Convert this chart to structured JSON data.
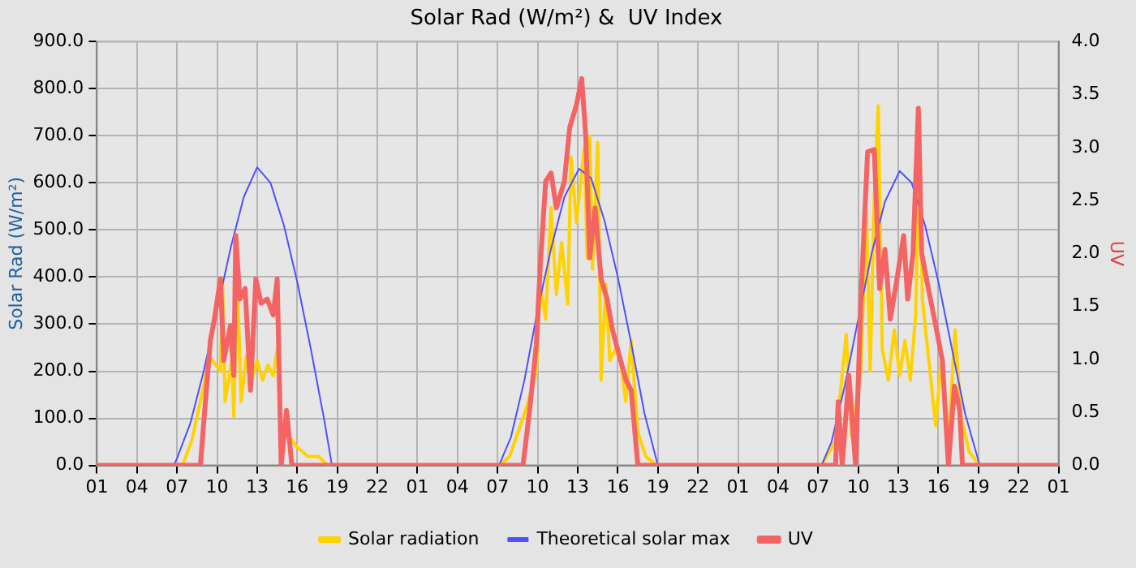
{
  "chart_data": {
    "type": "line",
    "title": "Solar Rad (W/m²) &  UV Index",
    "ylabel": "Solar Rad (W/m²)",
    "y2label": "UV",
    "xlim": [
      "--01-01T01:00",
      "--01-04T01:00"
    ],
    "xticks": [
      {
        "value": "--01-01T01:00",
        "label": "01"
      },
      {
        "value": "--01-01T04:00",
        "label": "04"
      },
      {
        "value": "--01-01T07:00",
        "label": "07"
      },
      {
        "value": "--01-01T10:00",
        "label": "10"
      },
      {
        "value": "--01-01T13:00",
        "label": "13"
      },
      {
        "value": "--01-01T16:00",
        "label": "16"
      },
      {
        "value": "--01-01T19:00",
        "label": "19"
      },
      {
        "value": "--01-01T22:00",
        "label": "22"
      },
      {
        "value": "--01-02T01:00",
        "label": "01"
      },
      {
        "value": "--01-02T04:00",
        "label": "04"
      },
      {
        "value": "--01-02T07:00",
        "label": "07"
      },
      {
        "value": "--01-02T10:00",
        "label": "10"
      },
      {
        "value": "--01-02T13:00",
        "label": "13"
      },
      {
        "value": "--01-02T16:00",
        "label": "16"
      },
      {
        "value": "--01-02T19:00",
        "label": "19"
      },
      {
        "value": "--01-02T22:00",
        "label": "22"
      },
      {
        "value": "--01-03T01:00",
        "label": "01"
      },
      {
        "value": "--01-03T04:00",
        "label": "04"
      },
      {
        "value": "--01-03T07:00",
        "label": "07"
      },
      {
        "value": "--01-03T10:00",
        "label": "10"
      },
      {
        "value": "--01-03T13:00",
        "label": "13"
      },
      {
        "value": "--01-03T16:00",
        "label": "16"
      },
      {
        "value": "--01-03T19:00",
        "label": "19"
      },
      {
        "value": "--01-03T22:00",
        "label": "22"
      },
      {
        "value": "--01-04T01:00",
        "label": "01"
      }
    ],
    "ylim": [
      0,
      900
    ],
    "yticks": [
      {
        "value": 0,
        "label": "0.0"
      },
      {
        "value": 100,
        "label": "100.0"
      },
      {
        "value": 200,
        "label": "200.0"
      },
      {
        "value": 300,
        "label": "300.0"
      },
      {
        "value": 400,
        "label": "400.0"
      },
      {
        "value": 500,
        "label": "500.0"
      },
      {
        "value": 600,
        "label": "600.0"
      },
      {
        "value": 700,
        "label": "700.0"
      },
      {
        "value": 800,
        "label": "800.0"
      },
      {
        "value": 900,
        "label": "900.0"
      }
    ],
    "y2lim": [
      0,
      4
    ],
    "y2ticks": [
      {
        "value": 0,
        "label": "0.0"
      },
      {
        "value": 0.5,
        "label": "0.5"
      },
      {
        "value": 1,
        "label": "1.0"
      },
      {
        "value": 1.5,
        "label": "1.5"
      },
      {
        "value": 2,
        "label": "2.0"
      },
      {
        "value": 2.5,
        "label": "2.5"
      },
      {
        "value": 3,
        "label": "3.0"
      },
      {
        "value": 3.5,
        "label": "3.5"
      },
      {
        "value": 4,
        "label": "4.0"
      }
    ],
    "grid": true,
    "legend": "bottom",
    "series": [
      {
        "name": "Solar radiation",
        "color": "#ffd200",
        "x": [
          "--01-01T01:00",
          "--01-01T07:24",
          "--01-01T08:06",
          "--01-01T09:00",
          "--01-01T09:24",
          "--01-01T10:15",
          "--01-01T10:24",
          "--01-01T10:36",
          "--01-01T11:06",
          "--01-01T11:15",
          "--01-01T11:30",
          "--01-01T11:48",
          "--01-01T12:12",
          "--01-01T12:36",
          "--01-01T13:00",
          "--01-01T13:24",
          "--01-01T13:48",
          "--01-01T14:12",
          "--01-01T14:30",
          "--01-01T14:48",
          "--01-01T15:24",
          "--01-01T16:00",
          "--01-01T16:48",
          "--01-01T17:36",
          "--01-01T18:18",
          "--01-02T07:06",
          "--01-02T07:54",
          "--01-02T09:12",
          "--01-02T09:54",
          "--01-02T10:12",
          "--01-02T10:36",
          "--01-02T11:00",
          "--01-02T11:24",
          "--01-02T11:48",
          "--01-02T12:15",
          "--01-02T12:30",
          "--01-02T12:54",
          "--01-02T13:30",
          "--01-02T13:42",
          "--01-02T13:54",
          "--01-02T14:06",
          "--01-02T14:30",
          "--01-02T14:45",
          "--01-02T15:06",
          "--01-02T15:24",
          "--01-02T15:48",
          "--01-02T16:12",
          "--01-02T16:36",
          "--01-02T17:00",
          "--01-02T17:30",
          "--01-02T18:06",
          "--01-02T18:54",
          "--01-03T07:15",
          "--01-03T08:18",
          "--01-03T09:06",
          "--01-03T09:30",
          "--01-03T10:12",
          "--01-03T10:36",
          "--01-03T10:54",
          "--01-03T11:12",
          "--01-03T11:30",
          "--01-03T11:48",
          "--01-03T12:15",
          "--01-03T12:42",
          "--01-03T13:06",
          "--01-03T13:30",
          "--01-03T13:54",
          "--01-03T14:18",
          "--01-03T14:36",
          "--01-03T14:48",
          "--01-03T15:12",
          "--01-03T15:48",
          "--01-03T16:12",
          "--01-03T16:45",
          "--01-03T17:15",
          "--01-03T17:42",
          "--01-03T18:18",
          "--01-03T19:06",
          "--01-04T01:00"
        ],
        "values": [
          0,
          0,
          52,
          168,
          233,
          200,
          395,
          136,
          223,
          104,
          408,
          136,
          233,
          181,
          223,
          181,
          213,
          191,
          246,
          71,
          61,
          39,
          19,
          19,
          0,
          0,
          19,
          126,
          200,
          385,
          311,
          547,
          363,
          473,
          343,
          654,
          515,
          676,
          440,
          699,
          417,
          686,
          181,
          385,
          223,
          246,
          223,
          136,
          265,
          71,
          19,
          0,
          0,
          52,
          278,
          61,
          200,
          547,
          200,
          570,
          764,
          246,
          181,
          288,
          191,
          265,
          181,
          320,
          732,
          353,
          246,
          84,
          223,
          52,
          288,
          104,
          29,
          0,
          0
        ]
      },
      {
        "name": "Theoretical solar max",
        "color": "#5050ff",
        "x": [
          "--01-01T01:00",
          "--01-01T06:45",
          "--01-01T07:00",
          "--01-01T08:00",
          "--01-01T09:00",
          "--01-01T10:00",
          "--01-01T11:00",
          "--01-01T12:00",
          "--01-01T13:00",
          "--01-01T14:00",
          "--01-01T15:00",
          "--01-01T16:00",
          "--01-01T17:00",
          "--01-01T18:00",
          "--01-01T18:36",
          "--01-02T07:06",
          "--01-02T08:00",
          "--01-02T09:00",
          "--01-02T10:00",
          "--01-02T11:00",
          "--01-02T12:00",
          "--01-02T13:06",
          "--01-02T14:00",
          "--01-02T15:00",
          "--01-02T16:00",
          "--01-02T17:00",
          "--01-02T18:00",
          "--01-02T19:00",
          "--01-03T07:15",
          "--01-03T08:00",
          "--01-03T09:00",
          "--01-03T10:00",
          "--01-03T11:00",
          "--01-03T12:00",
          "--01-03T13:06",
          "--01-03T14:00",
          "--01-03T15:00",
          "--01-03T16:00",
          "--01-03T17:00",
          "--01-03T18:00",
          "--01-03T19:06",
          "--01-04T01:00"
        ],
        "values": [
          0,
          0,
          15,
          90,
          200,
          330,
          460,
          570,
          633,
          600,
          510,
          390,
          250,
          100,
          0,
          0,
          60,
          180,
          330,
          460,
          570,
          630,
          610,
          520,
          400,
          260,
          110,
          0,
          0,
          50,
          170,
          310,
          450,
          560,
          625,
          600,
          510,
          390,
          250,
          110,
          0,
          0
        ]
      },
      {
        "name": "UV",
        "color": "#f46464",
        "axis": "y2",
        "x": [
          "--01-01T01:00",
          "--01-01T08:45",
          "--01-01T09:06",
          "--01-01T09:30",
          "--01-01T09:48",
          "--01-01T10:15",
          "--01-01T10:30",
          "--01-01T11:00",
          "--01-01T11:15",
          "--01-01T11:24",
          "--01-01T11:42",
          "--01-01T12:06",
          "--01-01T12:30",
          "--01-01T12:54",
          "--01-01T13:18",
          "--01-01T13:45",
          "--01-01T14:12",
          "--01-01T14:30",
          "--01-01T14:48",
          "--01-01T15:12",
          "--01-01T15:36",
          "--01-02T08:54",
          "--01-02T09:24",
          "--01-02T09:54",
          "--01-02T10:12",
          "--01-02T10:36",
          "--01-02T11:00",
          "--01-02T11:24",
          "--01-02T12:00",
          "--01-02T12:24",
          "--01-02T12:54",
          "--01-02T13:18",
          "--01-02T13:36",
          "--01-02T13:54",
          "--01-02T14:18",
          "--01-02T14:45",
          "--01-02T15:12",
          "--01-02T15:36",
          "--01-02T16:00",
          "--01-02T16:36",
          "--01-02T17:00",
          "--01-02T17:30",
          "--01-03T08:18",
          "--01-03T08:30",
          "--01-03T08:48",
          "--01-03T09:18",
          "--01-03T09:48",
          "--01-03T10:12",
          "--01-03T10:42",
          "--01-03T11:12",
          "--01-03T11:36",
          "--01-03T12:00",
          "--01-03T12:24",
          "--01-03T12:54",
          "--01-03T13:24",
          "--01-03T13:42",
          "--01-03T14:06",
          "--01-03T14:30",
          "--01-03T14:45",
          "--01-03T15:15",
          "--01-03T15:48",
          "--01-03T16:18",
          "--01-03T16:45",
          "--01-03T17:12",
          "--01-03T17:36",
          "--01-03T17:48",
          "--01-04T01:00"
        ],
        "values": [
          0,
          0,
          0.56,
          1.18,
          1.38,
          1.76,
          0.99,
          1.32,
          0.85,
          2.17,
          1.57,
          1.67,
          0.71,
          1.76,
          1.53,
          1.57,
          1.42,
          1.76,
          0,
          0.52,
          0,
          0,
          0.52,
          1.14,
          1.9,
          2.68,
          2.76,
          2.43,
          2.68,
          3.19,
          3.4,
          3.65,
          3.11,
          1.96,
          2.43,
          1.76,
          1.57,
          1.28,
          1.09,
          0.81,
          0.71,
          0,
          0,
          0.6,
          0,
          0.85,
          0,
          1.57,
          2.96,
          2.98,
          1.67,
          2.04,
          1.38,
          1.76,
          2.17,
          1.57,
          2,
          3.37,
          2,
          1.67,
          1.32,
          0.99,
          0,
          0.75,
          0.52,
          0,
          0
        ]
      }
    ]
  }
}
